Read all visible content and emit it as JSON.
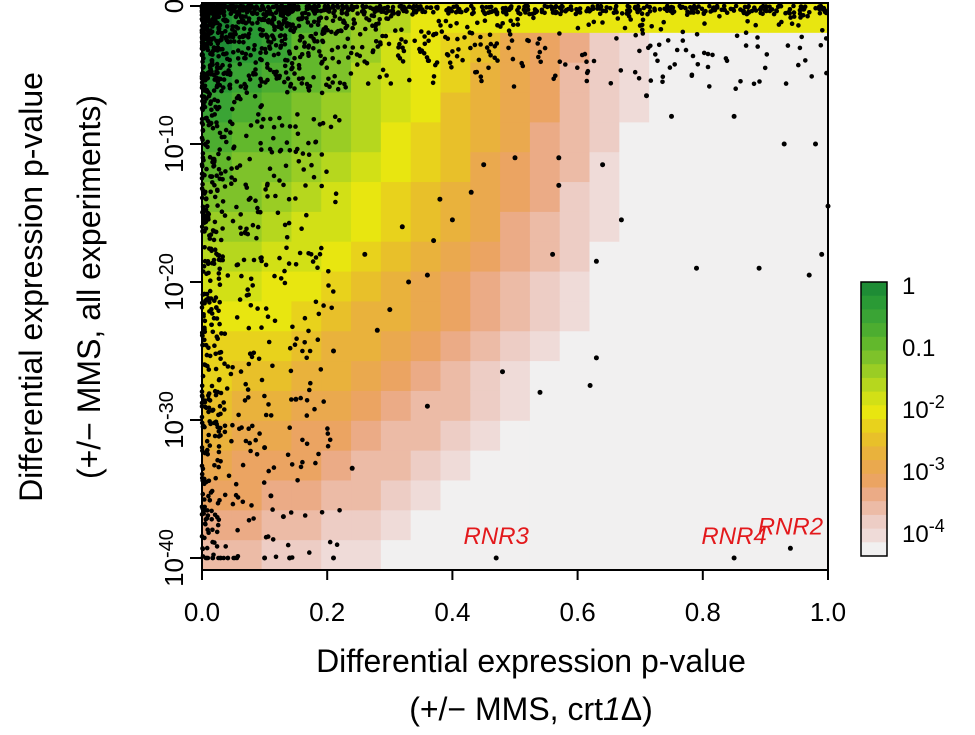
{
  "chart_data": {
    "type": "heatmap",
    "title": "",
    "xlabel": [
      "Differential expression p-value",
      "(+/− MMS, crt",
      "1",
      "Δ",
      ")"
    ],
    "ylabel": [
      "Differential expression p-value",
      "(+/− MMS, all experiments)"
    ],
    "xlim": [
      0,
      1
    ],
    "x_ticks": [
      {
        "value": 0.0,
        "label": "0.0"
      },
      {
        "value": 0.2,
        "label": "0.2"
      },
      {
        "value": 0.4,
        "label": "0.4"
      },
      {
        "value": 0.6,
        "label": "0.6"
      },
      {
        "value": 0.8,
        "label": "0.8"
      },
      {
        "value": 1.0,
        "label": "1.0"
      }
    ],
    "y_scale": "log10 p-value (0 at top, 10^-42 at bottom)",
    "ylim_exponent": [
      0,
      -42
    ],
    "y_ticks": [
      {
        "exponent": 0,
        "base": "0",
        "sup": ""
      },
      {
        "exponent": -10,
        "base": "10",
        "sup": "-10"
      },
      {
        "exponent": -20,
        "base": "10",
        "sup": "-20"
      },
      {
        "exponent": -30,
        "base": "10",
        "sup": "-30"
      },
      {
        "exponent": -40,
        "base": "10",
        "sup": "-40"
      }
    ],
    "colorbar": {
      "labels": [
        {
          "base": "1",
          "sup": ""
        },
        {
          "base": "0.1",
          "sup": ""
        },
        {
          "base": "10",
          "sup": "-2"
        },
        {
          "base": "10",
          "sup": "-3"
        },
        {
          "base": "10",
          "sup": "-4"
        }
      ],
      "colors": [
        "#1e8c35",
        "#2a9a35",
        "#3aa435",
        "#4cad30",
        "#62b82c",
        "#7ec22a",
        "#9acd24",
        "#b6d71e",
        "#d2e016",
        "#e8e610",
        "#e8d21c",
        "#e8c02a",
        "#e9b23c",
        "#eaa94e",
        "#eba462",
        "#ebab86",
        "#ecbba6",
        "#edcdc5",
        "#efdbd8",
        "#f1f0f0"
      ]
    },
    "annotations": [
      {
        "text": "RNR3",
        "x": 0.47,
        "exponent": -40,
        "color": "#e3191c"
      },
      {
        "text": "RNR4",
        "x": 0.85,
        "exponent": -40,
        "color": "#e3191c"
      },
      {
        "text": "RNR2",
        "x": 0.94,
        "exponent": -39.3,
        "color": "#e3191c"
      }
    ],
    "labeled_points": [
      {
        "x": 0.47,
        "exponent": -40
      },
      {
        "x": 0.85,
        "exponent": -40
      },
      {
        "x": 0.94,
        "exponent": -39.3
      }
    ],
    "scattered_points": [
      {
        "x": 0.45,
        "exponent": -11.5
      },
      {
        "x": 0.5,
        "exponent": -11.0
      },
      {
        "x": 0.57,
        "exponent": -11.0
      },
      {
        "x": 0.64,
        "exponent": -11.5
      },
      {
        "x": 0.57,
        "exponent": -13.0
      },
      {
        "x": 0.67,
        "exponent": -15.5
      },
      {
        "x": 0.56,
        "exponent": -18.0
      },
      {
        "x": 0.63,
        "exponent": -18.5
      },
      {
        "x": 0.79,
        "exponent": -19.0
      },
      {
        "x": 0.89,
        "exponent": -19.0
      },
      {
        "x": 0.97,
        "exponent": -19.5
      },
      {
        "x": 0.99,
        "exponent": -18.0
      },
      {
        "x": 1.0,
        "exponent": -14.5
      },
      {
        "x": 0.98,
        "exponent": -10.0
      },
      {
        "x": 0.93,
        "exponent": -10.0
      },
      {
        "x": 0.85,
        "exponent": -8.0
      },
      {
        "x": 0.75,
        "exponent": -8.0
      },
      {
        "x": 0.71,
        "exponent": -6.5
      },
      {
        "x": 0.48,
        "exponent": -26.5
      },
      {
        "x": 0.54,
        "exponent": -28.0
      },
      {
        "x": 0.62,
        "exponent": -27.5
      },
      {
        "x": 0.63,
        "exponent": -25.5
      },
      {
        "x": 0.36,
        "exponent": -29.0
      },
      {
        "x": 0.24,
        "exponent": -33.5
      },
      {
        "x": 0.21,
        "exponent": -40.0
      },
      {
        "x": 0.14,
        "exponent": -40.0
      },
      {
        "x": 0.1,
        "exponent": -40.0
      },
      {
        "x": 0.13,
        "exponent": -37.0
      },
      {
        "x": 0.11,
        "exponent": -35.5
      },
      {
        "x": 0.1,
        "exponent": -32.0
      },
      {
        "x": 0.15,
        "exponent": -28.5
      },
      {
        "x": 0.21,
        "exponent": -25.0
      },
      {
        "x": 0.28,
        "exponent": -23.5
      },
      {
        "x": 0.3,
        "exponent": -22.0
      },
      {
        "x": 0.33,
        "exponent": -20.0
      },
      {
        "x": 0.36,
        "exponent": -19.5
      },
      {
        "x": 0.37,
        "exponent": -17.0
      },
      {
        "x": 0.4,
        "exponent": -15.5
      },
      {
        "x": 0.43,
        "exponent": -13.5
      },
      {
        "x": 0.38,
        "exponent": -14.0
      },
      {
        "x": 0.32,
        "exponent": -16.0
      },
      {
        "x": 0.26,
        "exponent": -18.0
      }
    ]
  }
}
